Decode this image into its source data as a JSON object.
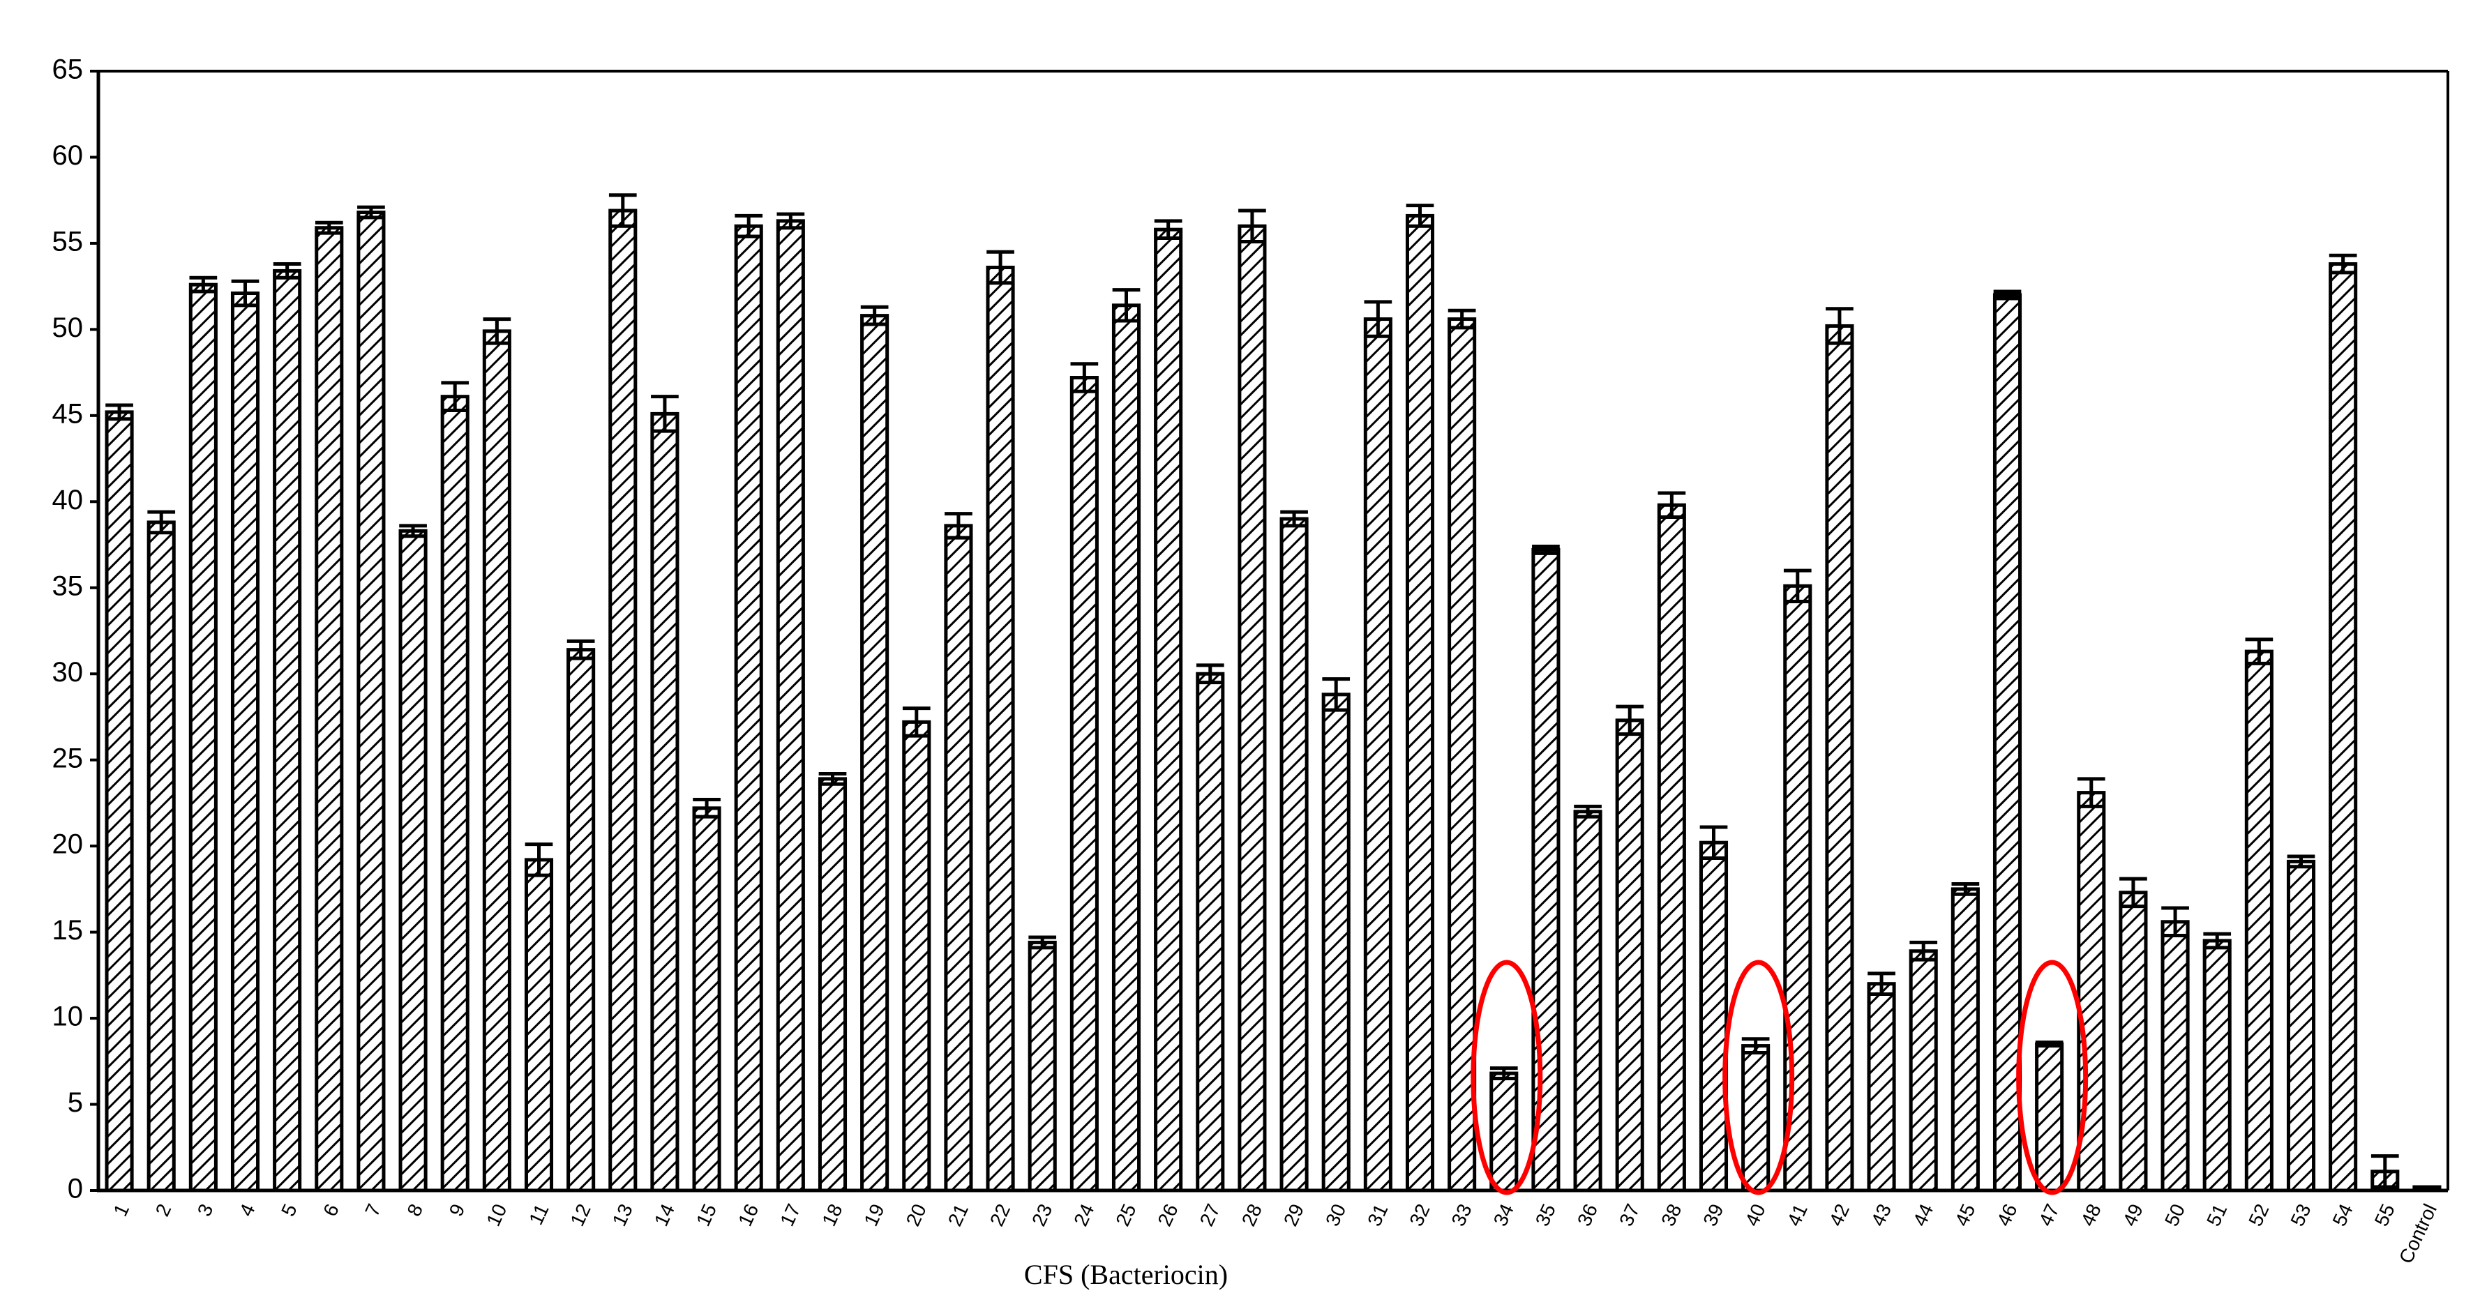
{
  "chart_data": {
    "type": "bar",
    "x_label": "CFS (Bacteriocin)",
    "categories": [
      "1",
      "2",
      "3",
      "4",
      "5",
      "6",
      "7",
      "8",
      "9",
      "10",
      "11",
      "12",
      "13",
      "14",
      "15",
      "16",
      "17",
      "18",
      "19",
      "20",
      "21",
      "22",
      "23",
      "24",
      "25",
      "26",
      "27",
      "28",
      "29",
      "30",
      "31",
      "32",
      "33",
      "34",
      "35",
      "36",
      "37",
      "38",
      "39",
      "40",
      "41",
      "42",
      "43",
      "44",
      "45",
      "46",
      "47",
      "48",
      "49",
      "50",
      "51",
      "52",
      "53",
      "54",
      "55",
      "Control"
    ],
    "values": [
      45.2,
      38.8,
      52.6,
      52.1,
      53.4,
      55.9,
      56.8,
      38.3,
      46.1,
      49.9,
      19.2,
      31.4,
      56.9,
      45.1,
      22.2,
      56.0,
      56.3,
      23.9,
      50.8,
      27.2,
      38.6,
      53.6,
      14.4,
      47.2,
      51.4,
      55.8,
      30.0,
      56.0,
      39.0,
      28.8,
      50.6,
      56.6,
      50.6,
      6.8,
      37.2,
      22.0,
      27.3,
      39.8,
      20.2,
      8.4,
      35.1,
      50.2,
      12.0,
      13.9,
      17.5,
      52.0,
      8.5,
      23.1,
      17.3,
      15.6,
      14.5,
      31.3,
      19.1,
      53.8,
      1.1,
      0.2
    ],
    "errors": [
      0.4,
      0.6,
      0.4,
      0.7,
      0.4,
      0.3,
      0.3,
      0.3,
      0.8,
      0.7,
      0.9,
      0.5,
      0.9,
      1.0,
      0.5,
      0.6,
      0.4,
      0.3,
      0.5,
      0.8,
      0.7,
      0.9,
      0.3,
      0.8,
      0.9,
      0.5,
      0.5,
      0.9,
      0.4,
      0.9,
      1.0,
      0.6,
      0.5,
      0.3,
      0.2,
      0.3,
      0.8,
      0.7,
      0.9,
      0.4,
      0.9,
      1.0,
      0.6,
      0.5,
      0.3,
      0.2,
      0.1,
      0.8,
      0.8,
      0.8,
      0.4,
      0.7,
      0.3,
      0.5,
      0.9,
      0
    ],
    "color": "#000000",
    "ylim": [
      0,
      65
    ],
    "yticks": [
      0,
      5,
      10,
      15,
      20,
      25,
      30,
      35,
      40,
      45,
      50,
      55,
      60,
      65
    ],
    "grid": false
  }
}
